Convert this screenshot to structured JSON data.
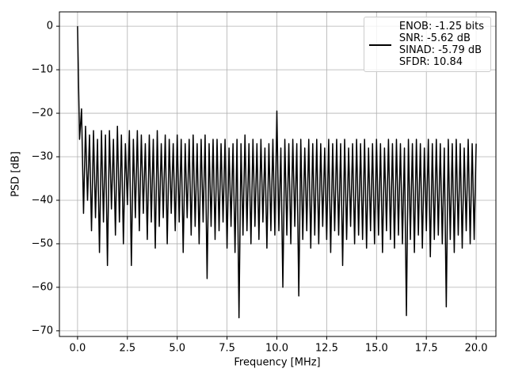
{
  "chart_data": {
    "type": "line",
    "xlabel": "Frequency [MHz]",
    "ylabel": "PSD [dB]",
    "x": [
      0,
      0.1,
      0.2,
      0.3,
      0.4,
      0.5,
      0.6,
      0.7,
      0.8,
      0.9,
      1,
      1.1,
      1.2,
      1.3,
      1.4,
      1.5,
      1.6,
      1.7,
      1.8,
      1.9,
      2,
      2.1,
      2.2,
      2.3,
      2.4,
      2.5,
      2.6,
      2.7,
      2.8,
      2.9,
      3,
      3.1,
      3.2,
      3.3,
      3.4,
      3.5,
      3.6,
      3.7,
      3.8,
      3.9,
      4,
      4.1,
      4.2,
      4.3,
      4.4,
      4.5,
      4.6,
      4.7,
      4.8,
      4.9,
      5,
      5.1,
      5.2,
      5.3,
      5.4,
      5.5,
      5.6,
      5.7,
      5.8,
      5.9,
      6,
      6.1,
      6.2,
      6.3,
      6.4,
      6.5,
      6.6,
      6.7,
      6.8,
      6.9,
      7,
      7.1,
      7.2,
      7.3,
      7.4,
      7.5,
      7.6,
      7.7,
      7.8,
      7.9,
      8,
      8.1,
      8.2,
      8.3,
      8.4,
      8.5,
      8.6,
      8.7,
      8.8,
      8.9,
      9,
      9.1,
      9.2,
      9.3,
      9.4,
      9.5,
      9.6,
      9.7,
      9.8,
      9.9,
      10,
      10.1,
      10.2,
      10.3,
      10.4,
      10.5,
      10.6,
      10.7,
      10.8,
      10.9,
      11,
      11.1,
      11.2,
      11.3,
      11.4,
      11.5,
      11.6,
      11.7,
      11.8,
      11.9,
      12,
      12.1,
      12.2,
      12.3,
      12.4,
      12.5,
      12.6,
      12.7,
      12.8,
      12.9,
      13,
      13.1,
      13.2,
      13.3,
      13.4,
      13.5,
      13.6,
      13.7,
      13.8,
      13.9,
      14,
      14.1,
      14.2,
      14.3,
      14.4,
      14.5,
      14.6,
      14.7,
      14.8,
      14.9,
      15,
      15.1,
      15.2,
      15.3,
      15.4,
      15.5,
      15.6,
      15.7,
      15.8,
      15.9,
      16,
      16.1,
      16.2,
      16.3,
      16.4,
      16.5,
      16.6,
      16.7,
      16.8,
      16.9,
      17,
      17.1,
      17.2,
      17.3,
      17.4,
      17.5,
      17.6,
      17.7,
      17.8,
      17.9,
      18,
      18.1,
      18.2,
      18.3,
      18.4,
      18.5,
      18.6,
      18.7,
      18.8,
      18.9,
      19,
      19.1,
      19.2,
      19.3,
      19.4,
      19.5,
      19.6,
      19.7,
      19.8,
      19.9,
      20
    ],
    "series": [
      {
        "name": "ENOB: -1.25 bits\nSNR: -5.62 dB\nSINAD: -5.79 dB\nSFDR: 10.84",
        "color": "#000000",
        "values": [
          0,
          -26,
          -19,
          -43,
          -23,
          -40,
          -25,
          -47,
          -24,
          -44,
          -26,
          -52,
          -24,
          -45,
          -25,
          -55,
          -24,
          -42,
          -26,
          -48,
          -23,
          -45,
          -25,
          -50,
          -27,
          -41,
          -24,
          -55,
          -26,
          -44,
          -24,
          -47,
          -25,
          -43,
          -27,
          -49,
          -25,
          -45,
          -26,
          -51,
          -24,
          -46,
          -27,
          -44,
          -25,
          -50,
          -26,
          -43,
          -27,
          -47,
          -25,
          -45,
          -26,
          -52,
          -27,
          -44,
          -26,
          -48,
          -25,
          -46,
          -27,
          -50,
          -26,
          -45,
          -25,
          -58,
          -27,
          -46,
          -26,
          -49,
          -26,
          -47,
          -27,
          -45,
          -26,
          -51,
          -28,
          -46,
          -27,
          -52,
          -26,
          -67,
          -27,
          -48,
          -25,
          -47,
          -27,
          -50,
          -26,
          -46,
          -27,
          -49,
          -26,
          -45,
          -28,
          -51,
          -27,
          -47,
          -26,
          -48,
          -19.5,
          -47,
          -28,
          -60,
          -26,
          -48,
          -27,
          -50,
          -26,
          -46,
          -27,
          -62,
          -26,
          -49,
          -28,
          -47,
          -26,
          -51,
          -27,
          -48,
          -26,
          -50,
          -27,
          -46,
          -28,
          -49,
          -26,
          -52,
          -27,
          -47,
          -26,
          -48,
          -27,
          -55,
          -26,
          -49,
          -28,
          -46,
          -27,
          -50,
          -26,
          -48,
          -27,
          -49,
          -26,
          -51,
          -28,
          -47,
          -27,
          -50,
          -26,
          -48,
          -27,
          -52,
          -28,
          -47,
          -26,
          -49,
          -27,
          -51,
          -26,
          -48,
          -27,
          -50,
          -28,
          -66.5,
          -26,
          -49,
          -27,
          -52,
          -26,
          -48,
          -27,
          -51,
          -28,
          -47,
          -26,
          -53,
          -27,
          -49,
          -26,
          -48,
          -27,
          -50,
          -28,
          -64.5,
          -26,
          -49,
          -27,
          -52,
          -26,
          -48,
          -27,
          -51,
          -28,
          -47,
          -26,
          -50,
          -27,
          -49,
          -27
        ]
      }
    ],
    "xlim": [
      -0.91,
      20.99
    ],
    "ylim": [
      -71.3,
      3.3
    ],
    "xticks": [
      {
        "value": 0,
        "label": "0.0"
      },
      2.5,
      {
        "value": 5,
        "label": "5.0"
      },
      7.5,
      {
        "value": 10,
        "label": "10.0"
      },
      12.5,
      {
        "value": 15,
        "label": "15.0"
      },
      17.5,
      {
        "value": 20,
        "label": "20.0"
      }
    ],
    "yticks": [
      {
        "value": 0,
        "label": "0"
      },
      {
        "value": -10,
        "label": "−10"
      },
      {
        "value": -20,
        "label": "−20"
      },
      {
        "value": -30,
        "label": "−30"
      },
      {
        "value": -40,
        "label": "−40"
      },
      {
        "value": -50,
        "label": "−50"
      },
      {
        "value": -60,
        "label": "−60"
      },
      {
        "value": -70,
        "label": "−70"
      }
    ],
    "grid": true,
    "legend": "upper right"
  }
}
